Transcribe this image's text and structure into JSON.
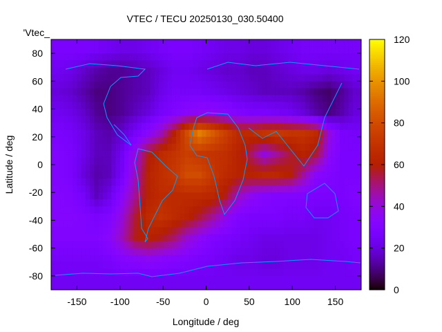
{
  "chart_data": {
    "type": "heatmap",
    "title": "VTEC / TECU 20250130_030.50400",
    "xlabel": "Longitude / deg",
    "ylabel": "Latitude / deg",
    "key_label": "'Vtec_",
    "xlim": [
      -180,
      180
    ],
    "ylim": [
      -90,
      90
    ],
    "xticks": [
      -150,
      -100,
      -50,
      0,
      50,
      100,
      150
    ],
    "yticks": [
      -80,
      -60,
      -40,
      -20,
      0,
      20,
      40,
      60,
      80
    ],
    "cbrange": [
      0,
      120
    ],
    "cbticks": [
      0,
      20,
      40,
      60,
      80,
      100,
      120
    ],
    "grid_lon_centers": [
      -172.5,
      -157.5,
      -142.5,
      -127.5,
      -112.5,
      -97.5,
      -82.5,
      -67.5,
      -52.5,
      -37.5,
      -22.5,
      -7.5,
      7.5,
      22.5,
      37.5,
      52.5,
      67.5,
      82.5,
      97.5,
      112.5,
      127.5,
      142.5,
      157.5,
      172.5
    ],
    "grid_lat_centers": [
      82.5,
      67.5,
      52.5,
      37.5,
      22.5,
      7.5,
      -7.5,
      -22.5,
      -37.5,
      -52.5,
      -67.5,
      -82.5
    ],
    "values": [
      [
        28,
        28,
        28,
        26,
        24,
        22,
        22,
        24,
        26,
        28,
        28,
        26,
        24,
        22,
        22,
        20,
        20,
        22,
        24,
        26,
        26,
        26,
        26,
        26
      ],
      [
        24,
        22,
        18,
        14,
        12,
        12,
        14,
        16,
        20,
        24,
        24,
        22,
        20,
        18,
        18,
        16,
        16,
        18,
        20,
        22,
        22,
        20,
        22,
        24
      ],
      [
        20,
        18,
        14,
        10,
        10,
        12,
        14,
        16,
        22,
        26,
        26,
        26,
        24,
        22,
        20,
        18,
        16,
        16,
        16,
        14,
        10,
        8,
        12,
        18
      ],
      [
        24,
        22,
        18,
        12,
        10,
        12,
        16,
        20,
        26,
        30,
        34,
        36,
        36,
        34,
        30,
        28,
        28,
        26,
        24,
        20,
        14,
        10,
        14,
        20
      ],
      [
        28,
        26,
        22,
        16,
        14,
        18,
        26,
        34,
        44,
        60,
        80,
        95,
        85,
        75,
        65,
        66,
        70,
        72,
        70,
        70,
        66,
        40,
        28,
        26
      ],
      [
        30,
        28,
        22,
        16,
        16,
        24,
        40,
        58,
        66,
        70,
        75,
        72,
        70,
        68,
        62,
        52,
        40,
        48,
        56,
        62,
        56,
        36,
        28,
        28
      ],
      [
        30,
        28,
        20,
        14,
        16,
        26,
        44,
        62,
        68,
        72,
        80,
        80,
        72,
        66,
        62,
        62,
        64,
        64,
        60,
        48,
        34,
        30,
        28,
        28
      ],
      [
        32,
        30,
        26,
        16,
        22,
        34,
        48,
        62,
        66,
        66,
        66,
        66,
        64,
        58,
        44,
        36,
        32,
        30,
        30,
        30,
        28,
        28,
        28,
        30
      ],
      [
        32,
        32,
        30,
        28,
        30,
        40,
        56,
        66,
        70,
        66,
        62,
        56,
        48,
        38,
        30,
        28,
        28,
        28,
        26,
        26,
        24,
        24,
        26,
        28
      ],
      [
        30,
        30,
        30,
        30,
        34,
        44,
        58,
        62,
        58,
        52,
        42,
        36,
        30,
        28,
        26,
        24,
        22,
        22,
        22,
        22,
        22,
        24,
        26,
        28
      ],
      [
        26,
        26,
        26,
        26,
        28,
        32,
        34,
        36,
        34,
        32,
        30,
        28,
        26,
        24,
        22,
        22,
        20,
        20,
        22,
        22,
        22,
        24,
        24,
        26
      ],
      [
        24,
        24,
        24,
        24,
        24,
        24,
        24,
        24,
        24,
        24,
        24,
        24,
        24,
        24,
        24,
        24,
        24,
        24,
        24,
        24,
        24,
        24,
        24,
        24
      ]
    ],
    "coastline_color": "#00a0ff",
    "palette": "gnuplot rgbformulae 7,5,15"
  }
}
